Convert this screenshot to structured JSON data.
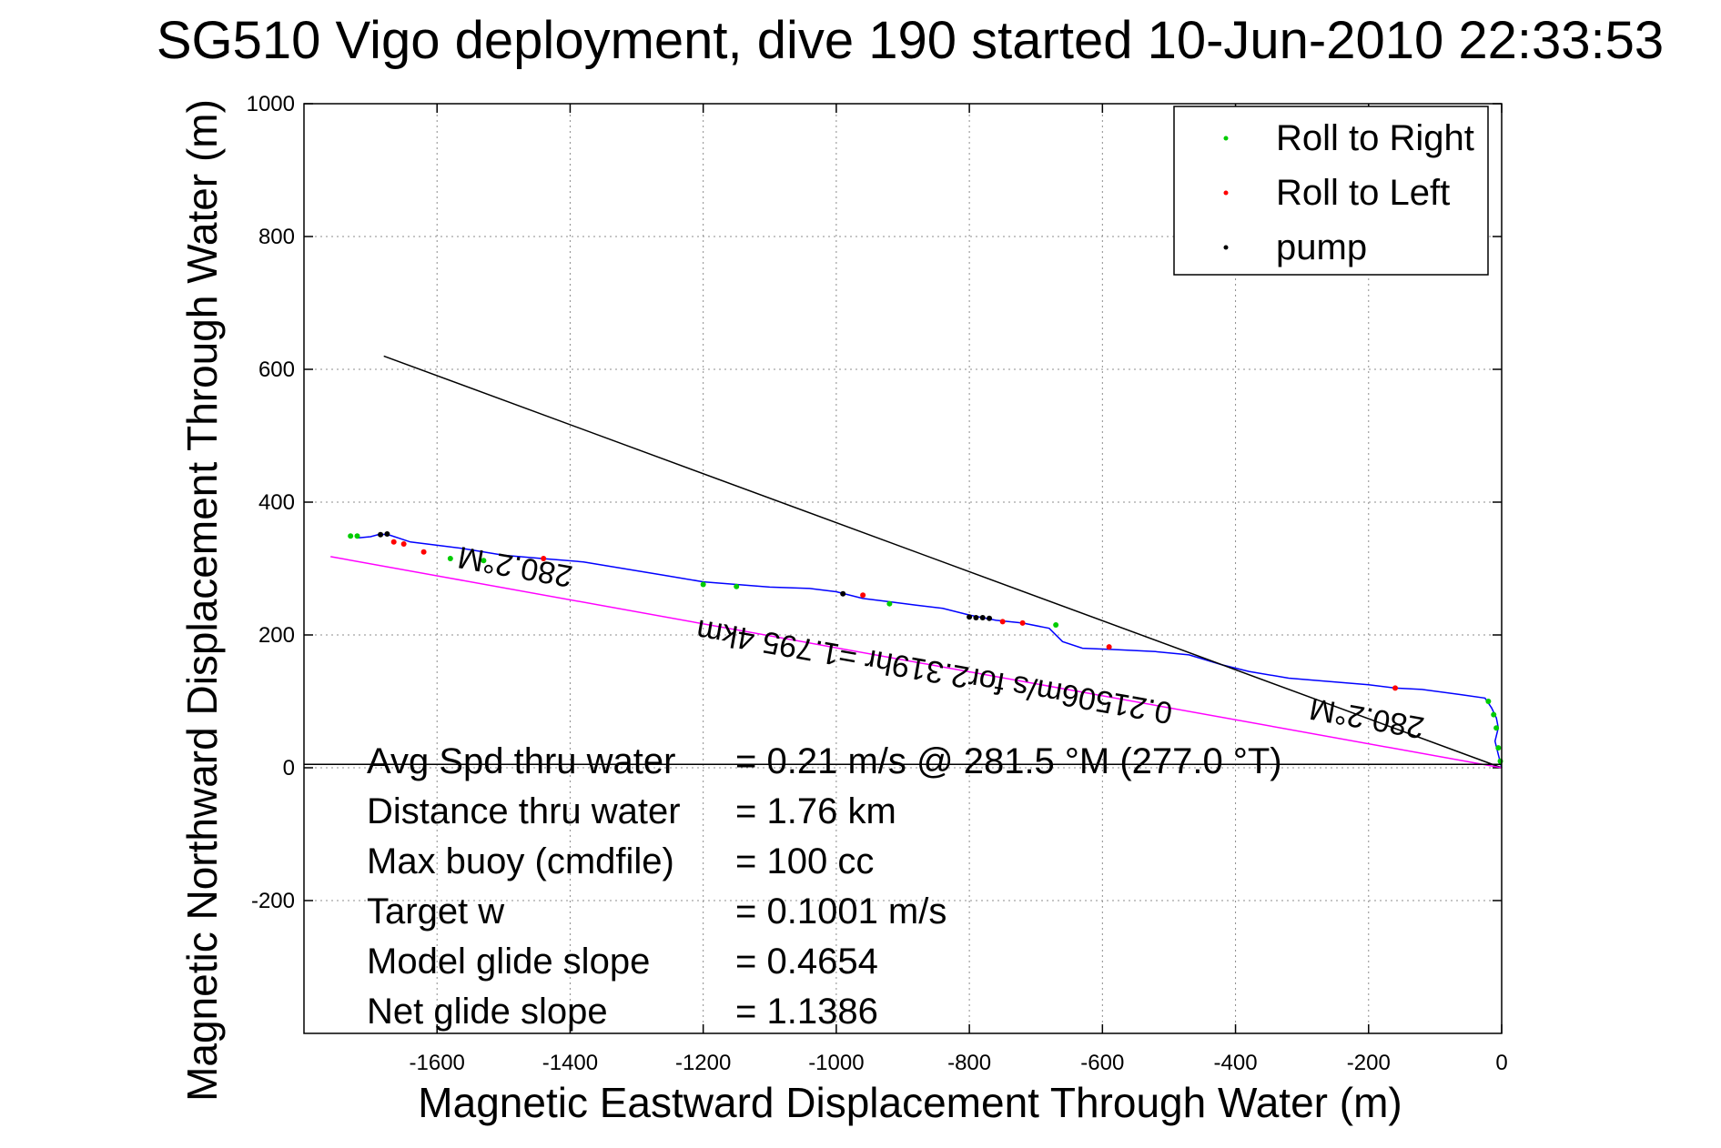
{
  "chart_data": {
    "type": "line",
    "title": "SG510 Vigo deployment, dive 190 started 10-Jun-2010 22:33:53",
    "xlabel": "Magnetic Eastward Displacement Through Water (m)",
    "ylabel": "Magnetic Northward Displacement Through Water (m)",
    "xlim": [
      -1800,
      0
    ],
    "ylim": [
      -400,
      1000
    ],
    "xticks": [
      -1600,
      -1400,
      -1200,
      -1000,
      -800,
      -600,
      -400,
      -200,
      0
    ],
    "yticks": [
      -200,
      0,
      200,
      400,
      600,
      800,
      1000
    ],
    "grid": true,
    "legend_position": "top-right",
    "legend": [
      {
        "label": "Roll to Right",
        "color": "#00cc00"
      },
      {
        "label": "Roll to Left",
        "color": "#ff0000"
      },
      {
        "label": "pump",
        "color": "#000000"
      }
    ],
    "series": [
      {
        "color": "#0000ff",
        "x": [
          0,
          -5,
          -10,
          -5,
          -8,
          -15,
          -25,
          -60,
          -120,
          -160,
          -200,
          -260,
          -320,
          -380,
          -420,
          -470,
          -520,
          -580,
          -630,
          -660,
          -680,
          -720,
          -760,
          -800,
          -840,
          -880,
          -920,
          -960,
          -1000,
          -1040,
          -1100,
          -1150,
          -1200,
          -1260,
          -1320,
          -1380,
          -1440,
          -1500,
          -1560,
          -1600,
          -1640,
          -1670,
          -1685,
          -1700,
          -1720
        ],
        "y": [
          0,
          20,
          40,
          60,
          75,
          90,
          105,
          110,
          118,
          120,
          125,
          130,
          135,
          145,
          155,
          170,
          175,
          178,
          180,
          190,
          210,
          218,
          222,
          230,
          240,
          245,
          250,
          255,
          265,
          270,
          272,
          276,
          280,
          290,
          300,
          310,
          315,
          320,
          330,
          335,
          340,
          350,
          352,
          348,
          346
        ]
      },
      {
        "color": "#000000",
        "x": [
          0,
          -1680
        ],
        "y": [
          0,
          620
        ]
      },
      {
        "color": "#ff00ff",
        "x": [
          0,
          -1760
        ],
        "y": [
          0,
          318
        ]
      },
      {
        "color": "#000000",
        "x": [
          -1800,
          0
        ],
        "y": [
          5,
          5
        ]
      }
    ],
    "markers": {
      "roll_right": {
        "x": [
          -20,
          -12,
          -8,
          -5,
          -2,
          -670,
          -920,
          -1150,
          -1200,
          -1530,
          -1580,
          -1730,
          -1720
        ],
        "y": [
          100,
          80,
          60,
          30,
          10,
          215,
          247,
          273,
          276,
          312,
          315,
          349,
          349
        ]
      },
      "roll_left": {
        "x": [
          -160,
          -590,
          -720,
          -750,
          -960,
          -1440,
          -1620,
          -1650,
          -1665
        ],
        "y": [
          120,
          182,
          218,
          220,
          260,
          315,
          325,
          337,
          340
        ]
      },
      "pump": {
        "x": [
          -770,
          -780,
          -790,
          -800,
          -990,
          -1675,
          -1685
        ],
        "y": [
          225,
          226,
          226,
          227,
          262,
          352,
          351
        ]
      }
    },
    "annotations": [
      {
        "text": "280.2°M",
        "x": -1480,
        "y": 318,
        "rotation": 190
      },
      {
        "text": "0.21506m/s for2.319hr =1.795 4km",
        "x": -850,
        "y": 160,
        "rotation": 190
      },
      {
        "text": "280.2°M",
        "x": -200,
        "y": 90,
        "rotation": 190
      }
    ],
    "stats": [
      {
        "label": "Avg Spd thru water",
        "value": "=  0.21 m/s @ 281.5 °M (277.0 °T)"
      },
      {
        "label": "Distance thru water",
        "value": "=  1.76 km"
      },
      {
        "label": "Max buoy (cmdfile)",
        "value": "= 100 cc"
      },
      {
        "label": "Target w",
        "value": "= 0.1001 m/s"
      },
      {
        "label": "Model glide slope",
        "value": "= 0.4654"
      },
      {
        "label": "Net glide slope",
        "value": "= 1.1386"
      }
    ]
  }
}
